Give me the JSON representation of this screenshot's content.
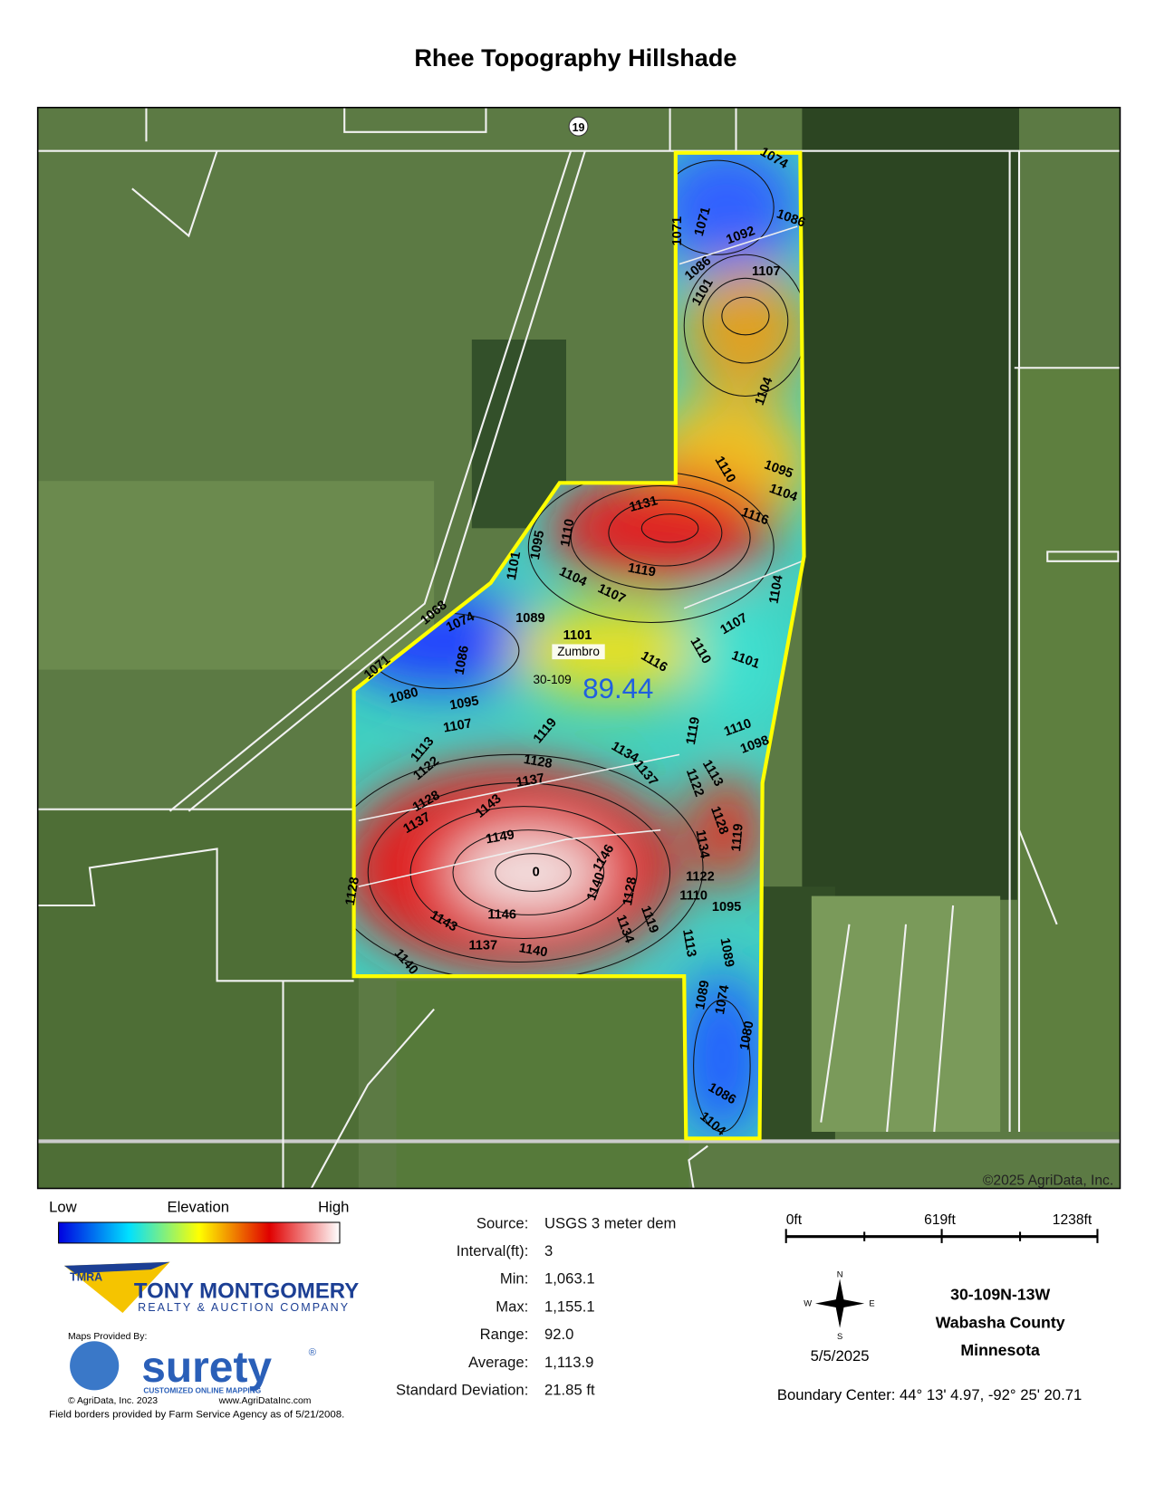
{
  "title": "Rhee Topography Hillshade",
  "map": {
    "route": "19",
    "township_label": "Zumbro",
    "section_label": "30-109",
    "acres": "89.44",
    "copyright": "©2025 AgriData, Inc.",
    "contour_labels": [
      "1074",
      "1086",
      "1071",
      "1071",
      "1092",
      "1086",
      "1107",
      "1101",
      "1104",
      "1095",
      "1104",
      "1110",
      "1116",
      "1131",
      "1119",
      "1101",
      "1095",
      "1110",
      "1104",
      "1107",
      "1068",
      "1074",
      "1089",
      "1101",
      "1104",
      "1107",
      "1101",
      "1110",
      "1116",
      "1071",
      "1086",
      "1080",
      "1095",
      "1107",
      "1119",
      "1134",
      "1137",
      "1119",
      "1113",
      "1098",
      "1110",
      "1113",
      "1122",
      "1128",
      "1137",
      "1122",
      "1128",
      "1119",
      "1128",
      "1143",
      "1137",
      "1149",
      "1134",
      "1146",
      "1140",
      "1128",
      "1122",
      "1110",
      "1095",
      "1128",
      "1143",
      "1146",
      "1119",
      "1134",
      "1113",
      "1089",
      "1137",
      "1140",
      "1140",
      "1089",
      "1074",
      "1080",
      "1086",
      "1104",
      "0"
    ]
  },
  "legend": {
    "low": "Low",
    "title": "Elevation",
    "high": "High"
  },
  "stats": [
    {
      "label": "Source:",
      "value": "USGS 3 meter dem"
    },
    {
      "label": "Interval(ft):",
      "value": "3"
    },
    {
      "label": "Min:",
      "value": "1,063.1"
    },
    {
      "label": "Max:",
      "value": "1,155.1"
    },
    {
      "label": "Range:",
      "value": "92.0"
    },
    {
      "label": "Average:",
      "value": "1,113.9"
    },
    {
      "label": "Standard Deviation:",
      "value": "21.85 ft"
    }
  ],
  "scale": {
    "labels": [
      "0ft",
      "619ft",
      "1238ft"
    ]
  },
  "compass": {
    "n": "N",
    "s": "S",
    "e": "E",
    "w": "W"
  },
  "date": "5/5/2025",
  "location": [
    "30-109N-13W",
    "Wabasha County",
    "Minnesota"
  ],
  "boundary_center": "Boundary Center: 44° 13' 4.97,  -92° 25' 20.71",
  "logos": {
    "tmra": "TMRA",
    "company": "TONY MONTGOMERY",
    "company_sub": "REALTY & AUCTION COMPANY",
    "maps_by": "Maps Provided By:",
    "surety": "surety",
    "surety_reg": "®",
    "surety_sub": "CUSTOMIZED ONLINE MAPPING",
    "agridata": "© AgriData, Inc. 2023",
    "website": "www.AgriDataInc.com"
  },
  "footer": "Field borders provided by Farm Service Agency as of 5/21/2008."
}
